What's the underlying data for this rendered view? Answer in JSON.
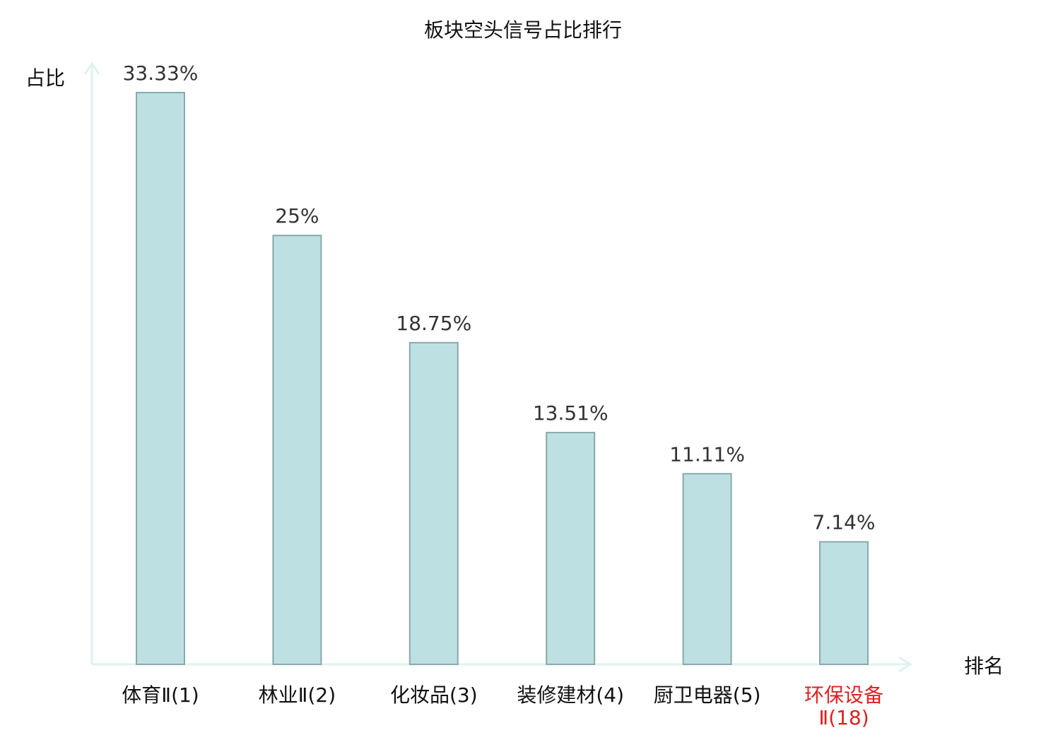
{
  "chart_data": {
    "type": "bar",
    "title": "板块空头信号占比排行",
    "ylabel": "占比",
    "xlabel": "排名",
    "categories": [
      {
        "name": "体育Ⅱ",
        "rank": "(1)",
        "highlight": false
      },
      {
        "name": "林业Ⅱ",
        "rank": "(2)",
        "highlight": false
      },
      {
        "name": "化妆品",
        "rank": "(3)",
        "highlight": false
      },
      {
        "name": "装修建材",
        "rank": "(4)",
        "highlight": false
      },
      {
        "name": "厨卫电器",
        "rank": "(5)",
        "highlight": false
      },
      {
        "name": "环保设备",
        "rank": "Ⅱ(18)",
        "highlight": true
      }
    ],
    "values": [
      33.33,
      25,
      18.75,
      13.51,
      11.11,
      7.14
    ],
    "value_labels": [
      "33.33%",
      "25%",
      "18.75%",
      "13.51%",
      "11.11%",
      "7.14%"
    ],
    "ylim": [
      0,
      33.33
    ],
    "grid": false,
    "colors": {
      "bar_fill": "#bde0e3",
      "bar_stroke": "#8aa9ab",
      "axis": "#dff2ef",
      "highlight_text": "#e02020"
    }
  }
}
